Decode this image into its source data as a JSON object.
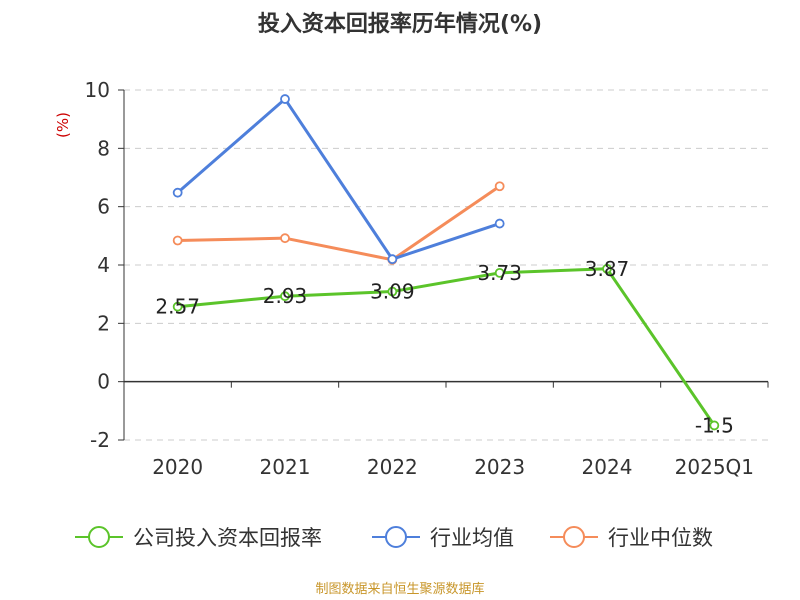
{
  "chart_data": {
    "type": "line",
    "title": "投入资本回报率历年情况(%)",
    "ylabel": "(%)",
    "xlabel": "",
    "categories": [
      "2020",
      "2021",
      "2022",
      "2023",
      "2024",
      "2025Q1"
    ],
    "ylim": [
      -2,
      10
    ],
    "yticks": [
      -2,
      0,
      2,
      4,
      6,
      8,
      10
    ],
    "grid": true,
    "legend_position": "bottom",
    "series": [
      {
        "name": "公司投入资本回报率",
        "color": "#5bc42a",
        "values": [
          2.57,
          2.93,
          3.09,
          3.73,
          3.87,
          -1.5
        ],
        "labels": [
          "2.57",
          "2.93",
          "3.09",
          "3.73",
          "3.87",
          "-1.5"
        ]
      },
      {
        "name": "行业均值",
        "color": "#4e7fdb",
        "values": [
          6.48,
          9.69,
          4.2,
          5.42,
          null,
          null
        ]
      },
      {
        "name": "行业中位数",
        "color": "#f58c5a",
        "values": [
          4.84,
          4.92,
          4.18,
          6.7,
          null,
          null
        ]
      }
    ]
  },
  "source_note": "制图数据来自恒生聚源数据库",
  "colors": {
    "axis": "#333333",
    "grid": "#cccccc",
    "ylabel": "#cc0000",
    "source": "#c8962a"
  }
}
